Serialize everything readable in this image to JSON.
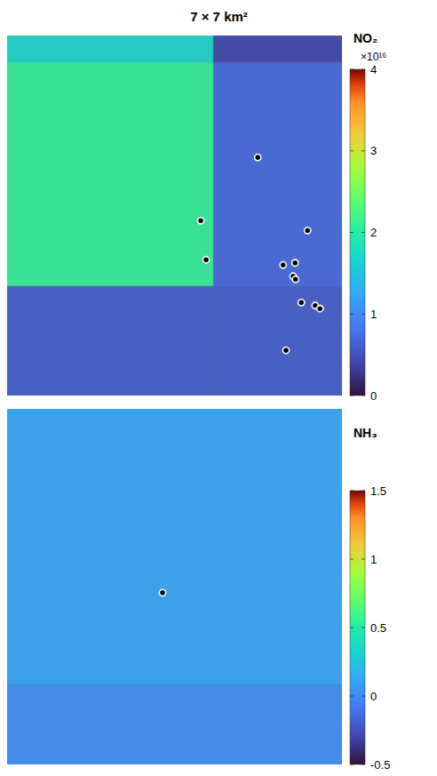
{
  "chart_data": [
    {
      "type": "heatmap",
      "title": "7 × 7 km²",
      "colorbar_label": "NO₂",
      "colorbar_multiplier": "×10¹⁶",
      "xlim": [
        0,
        7
      ],
      "ylim": [
        0,
        7
      ],
      "tick_labels": false,
      "marker": "circle",
      "x_edges": [
        0,
        4.31,
        7
      ],
      "y_edges": [
        0,
        2.13,
        6.48,
        7
      ],
      "cells": [
        [
          6000000000000000.0,
          6000000000000000.0
        ],
        [
          2.1e+16,
          7000000000000000.0
        ],
        [
          1.7e+16,
          4000000000000000.0
        ]
      ],
      "colorbar_range": [
        0,
        4e+16
      ],
      "colorbar_ticks": [
        {
          "value": 0,
          "label": "0"
        },
        {
          "value": 1e+16,
          "label": "1"
        },
        {
          "value": 2e+16,
          "label": "2"
        },
        {
          "value": 3e+16,
          "label": "3"
        },
        {
          "value": 4e+16,
          "label": "4"
        }
      ],
      "points": {
        "x": [
          5.24,
          4.05,
          4.16,
          6.28,
          5.77,
          6.02,
          5.98,
          6.03,
          6.15,
          6.44,
          6.54,
          5.83
        ],
        "y": [
          4.63,
          3.4,
          2.64,
          3.21,
          2.54,
          2.58,
          2.32,
          2.26,
          1.81,
          1.75,
          1.69,
          0.88
        ]
      }
    },
    {
      "type": "heatmap",
      "colorbar_label": "NH₃",
      "xlim": [
        0,
        7
      ],
      "ylim": [
        0,
        7
      ],
      "tick_labels": false,
      "marker": "circle",
      "x_edges": [
        0,
        7
      ],
      "y_edges": [
        0,
        1.58,
        7
      ],
      "cells": [
        [
          0.02
        ],
        [
          0.12
        ]
      ],
      "colorbar_range": [
        -0.5,
        1.5
      ],
      "colorbar_ticks": [
        -0.5,
        0,
        0.5,
        1,
        1.5
      ],
      "points": {
        "x": [
          3.25
        ],
        "y": [
          3.38
        ]
      }
    }
  ]
}
